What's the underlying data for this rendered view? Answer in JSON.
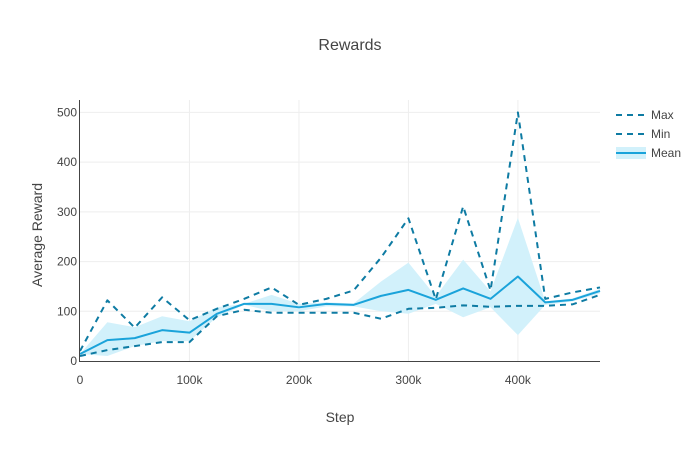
{
  "chart_data": {
    "type": "line",
    "title": "Rewards",
    "xlabel": "Step",
    "ylabel": "Average Reward",
    "xlim": [
      0,
      475000
    ],
    "ylim": [
      0,
      525
    ],
    "x_ticks": [
      0,
      100000,
      200000,
      300000,
      400000
    ],
    "x_tick_labels": [
      "0",
      "100k",
      "200k",
      "300k",
      "400k"
    ],
    "y_ticks": [
      0,
      100,
      200,
      300,
      400,
      500
    ],
    "y_tick_labels": [
      "0",
      "100",
      "200",
      "300",
      "400",
      "500"
    ],
    "grid": true,
    "legend_position": "top-right",
    "x": [
      0,
      25000,
      50000,
      75000,
      100000,
      125000,
      150000,
      175000,
      200000,
      225000,
      250000,
      275000,
      300000,
      325000,
      350000,
      375000,
      400000,
      425000,
      450000,
      475000
    ],
    "series": [
      {
        "name": "Max",
        "style": "dash",
        "color": "#0e7ba3",
        "values": [
          20,
          122,
          67,
          128,
          82,
          105,
          125,
          148,
          113,
          125,
          142,
          208,
          287,
          124,
          311,
          142,
          500,
          125,
          138,
          148
        ]
      },
      {
        "name": "Min",
        "style": "dash",
        "color": "#0e7ba3",
        "values": [
          10,
          22,
          30,
          38,
          38,
          90,
          103,
          97,
          97,
          97,
          97,
          85,
          105,
          107,
          112,
          109,
          111,
          111,
          114,
          133
        ]
      },
      {
        "name": "Mean",
        "style": "solid",
        "color": "#1aa3da",
        "band_color": "#d2f1fb",
        "values": [
          14,
          42,
          46,
          62,
          57,
          95,
          115,
          115,
          108,
          115,
          113,
          131,
          143,
          123,
          146,
          125,
          170,
          118,
          123,
          141
        ],
        "band_upper": [
          14,
          78,
          68,
          90,
          80,
          108,
          115,
          133,
          115,
          118,
          116,
          160,
          198,
          130,
          204,
          140,
          288,
          120,
          126,
          145
        ],
        "band_lower": [
          14,
          10,
          30,
          40,
          40,
          88,
          113,
          100,
          100,
          110,
          110,
          100,
          95,
          115,
          88,
          108,
          52,
          113,
          120,
          136
        ]
      }
    ]
  }
}
